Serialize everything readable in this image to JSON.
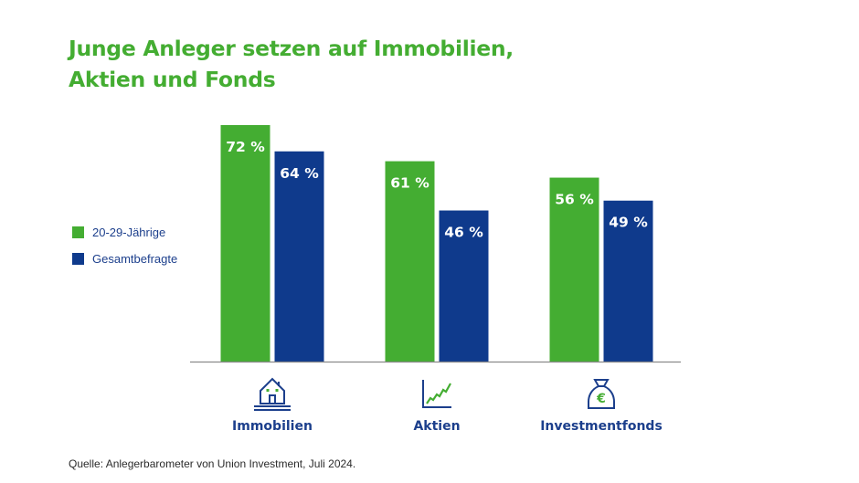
{
  "chart_data": {
    "type": "bar",
    "title": "Junge Anleger setzen auf Immobilien, Aktien und Fonds",
    "title_lines": [
      "Junge Anleger setzen auf Immobilien,",
      "Aktien und Fonds"
    ],
    "categories": [
      "Immobilien",
      "Aktien",
      "Investmentfonds"
    ],
    "category_icons": [
      "house-icon",
      "stock-chart-icon",
      "money-bag-euro-icon"
    ],
    "series": [
      {
        "name": "20-29-Jährige",
        "color": "#44ad32",
        "values": [
          72,
          61,
          56
        ]
      },
      {
        "name": "Gesamtbefragte",
        "color": "#0f3a8c",
        "values": [
          64,
          46,
          49
        ]
      }
    ],
    "value_suffix": " %",
    "xlabel": "",
    "ylabel": "",
    "ylim": [
      0,
      72
    ],
    "grid": false,
    "legend_position": "left",
    "source": "Quelle: Anlegerbarometer von Union Investment, Juli 2024."
  },
  "colors": {
    "green": "#44ad32",
    "blue": "#0f3a8c",
    "label_blue": "#1c3f8c"
  }
}
